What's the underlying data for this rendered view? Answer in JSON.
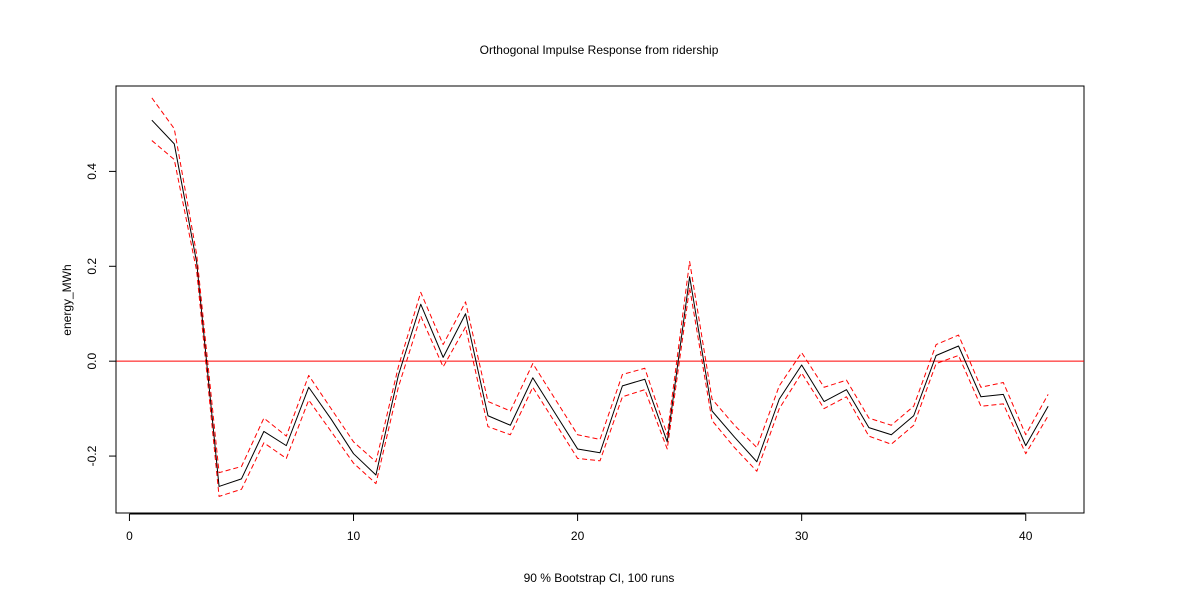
{
  "chart_data": {
    "type": "line",
    "title": "Orthogonal Impulse Response from ridership",
    "xlabel": "90 % Bootstrap CI,  100 runs",
    "ylabel": "energy_MWh",
    "xlim": [
      -0.6,
      42.6
    ],
    "ylim": [
      -0.32,
      0.58
    ],
    "xticks": [
      "0",
      "10",
      "20",
      "30",
      "40"
    ],
    "yticks": [
      "-0.2",
      "0.0",
      "0.2",
      "0.4"
    ],
    "xtick_values": [
      0,
      10,
      20,
      30,
      40
    ],
    "ytick_values": [
      -0.2,
      0.0,
      0.2,
      0.4
    ],
    "zero_line": 0.0,
    "x": [
      1,
      2,
      3,
      4,
      5,
      6,
      7,
      8,
      9,
      10,
      11,
      12,
      13,
      14,
      15,
      16,
      17,
      18,
      19,
      20,
      21,
      22,
      23,
      24,
      25,
      26,
      27,
      28,
      29,
      30,
      31,
      32,
      33,
      34,
      35,
      36,
      37,
      38,
      39,
      40,
      41
    ],
    "series": [
      {
        "role": "irf",
        "color": "#000000",
        "values": [
          0.508,
          0.458,
          0.208,
          -0.264,
          -0.248,
          -0.148,
          -0.178,
          -0.055,
          -0.122,
          -0.195,
          -0.24,
          -0.03,
          0.12,
          0.008,
          0.1,
          -0.115,
          -0.135,
          -0.035,
          -0.11,
          -0.185,
          -0.193,
          -0.052,
          -0.038,
          -0.17,
          0.178,
          -0.105,
          -0.16,
          -0.212,
          -0.08,
          -0.008,
          -0.085,
          -0.06,
          -0.14,
          -0.155,
          -0.115,
          0.012,
          0.032,
          -0.075,
          -0.07,
          -0.178,
          -0.095
        ]
      },
      {
        "role": "upper",
        "color": "#ff0000",
        "values": [
          0.555,
          0.49,
          0.225,
          -0.235,
          -0.222,
          -0.12,
          -0.158,
          -0.03,
          -0.1,
          -0.17,
          -0.212,
          -0.012,
          0.145,
          0.035,
          0.125,
          -0.085,
          -0.105,
          -0.005,
          -0.08,
          -0.155,
          -0.165,
          -0.028,
          -0.015,
          -0.155,
          0.21,
          -0.08,
          -0.135,
          -0.182,
          -0.052,
          0.018,
          -0.055,
          -0.04,
          -0.12,
          -0.135,
          -0.095,
          0.035,
          0.055,
          -0.055,
          -0.045,
          -0.155,
          -0.07
        ]
      },
      {
        "role": "lower",
        "color": "#ff0000",
        "values": [
          0.465,
          0.425,
          0.19,
          -0.285,
          -0.27,
          -0.172,
          -0.205,
          -0.082,
          -0.148,
          -0.215,
          -0.258,
          -0.055,
          0.095,
          -0.012,
          0.072,
          -0.138,
          -0.155,
          -0.055,
          -0.13,
          -0.205,
          -0.21,
          -0.075,
          -0.06,
          -0.185,
          0.155,
          -0.125,
          -0.182,
          -0.232,
          -0.1,
          -0.025,
          -0.1,
          -0.075,
          -0.158,
          -0.175,
          -0.135,
          -0.005,
          0.012,
          -0.095,
          -0.09,
          -0.195,
          -0.115
        ]
      }
    ]
  }
}
